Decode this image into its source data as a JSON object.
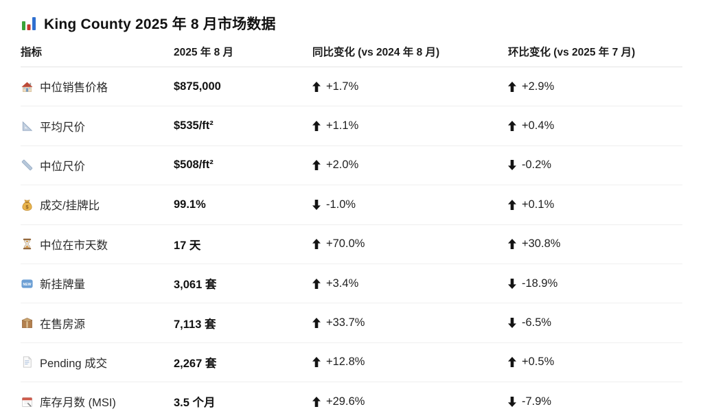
{
  "title": {
    "icon": "bar-chart-icon",
    "text": "King County 2025 年 8 月市场数据"
  },
  "table": {
    "columns": [
      "指标",
      "2025 年 8 月",
      "同比变化 (vs 2024 年 8 月)",
      "环比变化 (vs 2025 年 7 月)"
    ],
    "rows": [
      {
        "icon": "house-icon",
        "label": "中位销售价格",
        "value": "$875,000",
        "yoy": {
          "dir": "up",
          "text": "+1.7%"
        },
        "mom": {
          "dir": "up",
          "text": "+2.9%"
        }
      },
      {
        "icon": "triangular-ruler-icon",
        "label": "平均尺价",
        "value": "$535/ft²",
        "yoy": {
          "dir": "up",
          "text": "+1.1%"
        },
        "mom": {
          "dir": "up",
          "text": "+0.4%"
        }
      },
      {
        "icon": "straight-ruler-icon",
        "label": "中位尺价",
        "value": "$508/ft²",
        "yoy": {
          "dir": "up",
          "text": "+2.0%"
        },
        "mom": {
          "dir": "down",
          "text": "-0.2%"
        }
      },
      {
        "icon": "money-bag-icon",
        "label": "成交/挂牌比",
        "value": "99.1%",
        "yoy": {
          "dir": "down",
          "text": "-1.0%"
        },
        "mom": {
          "dir": "up",
          "text": "+0.1%"
        }
      },
      {
        "icon": "hourglass-icon",
        "label": "中位在市天数",
        "value": "17 天",
        "yoy": {
          "dir": "up",
          "text": "+70.0%"
        },
        "mom": {
          "dir": "up",
          "text": "+30.8%"
        }
      },
      {
        "icon": "new-badge-icon",
        "label": "新挂牌量",
        "value": "3,061 套",
        "yoy": {
          "dir": "up",
          "text": "+3.4%"
        },
        "mom": {
          "dir": "down",
          "text": "-18.9%"
        }
      },
      {
        "icon": "package-icon",
        "label": "在售房源",
        "value": "7,113 套",
        "yoy": {
          "dir": "up",
          "text": "+33.7%"
        },
        "mom": {
          "dir": "down",
          "text": "-6.5%"
        }
      },
      {
        "icon": "page-icon",
        "label": "Pending 成交",
        "value": "2,267 套",
        "yoy": {
          "dir": "up",
          "text": "+12.8%"
        },
        "mom": {
          "dir": "up",
          "text": "+0.5%"
        }
      },
      {
        "icon": "calendar-icon",
        "label": "库存月数 (MSI)",
        "value": "3.5 个月",
        "yoy": {
          "dir": "up",
          "text": "+29.6%"
        },
        "mom": {
          "dir": "down",
          "text": "-7.9%"
        }
      }
    ]
  },
  "colors": {
    "arrow": "#141414",
    "row_separator": "#efefef",
    "header_separator": "#e4e4e4",
    "title_bar_green": "#3aa339",
    "title_bar_red": "#c6382e",
    "title_bar_blue": "#2f6fd0",
    "new_badge_blue": "#6c9fd4",
    "calendar_red": "#cf5b4c"
  }
}
